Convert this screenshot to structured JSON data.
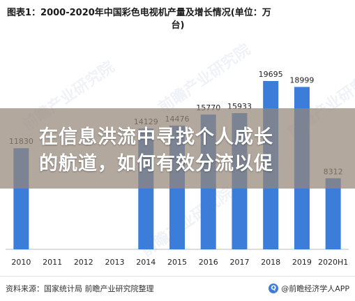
{
  "chart_data": {
    "type": "bar",
    "title_line1": "图表1：2000-2020年中国彩色电视机产量及增长情况(单位：万",
    "title_line2": "台)",
    "categories": [
      "2010",
      "2011",
      "2012",
      "2013",
      "2014",
      "2015",
      "2016",
      "2017",
      "2018",
      "2019",
      "2020H1"
    ],
    "values": [
      11830,
      null,
      null,
      null,
      14129,
      14476,
      15770,
      15933,
      19695,
      18999,
      8312
    ],
    "value_labels": [
      "11830",
      "",
      "",
      "",
      "14129",
      "14476",
      "15770",
      "15933",
      "19695",
      "18999",
      "8312"
    ],
    "ylim": [
      0,
      21000
    ],
    "grid": false,
    "bar_color": "#3b7dd8"
  },
  "overlay": {
    "text_line1": "在信息洪流中寻找个人成长",
    "text_line2": "的航道，如何有效分流以促"
  },
  "footer": {
    "source": "资料来源：国家统计局 前瞻产业研究院整理",
    "brand": "@前瞻经济学人APP"
  },
  "watermarks": [
    "前瞻产业研究院",
    "前瞻产业研究院",
    "前瞻产业研究院",
    "前瞻产业研究院"
  ]
}
